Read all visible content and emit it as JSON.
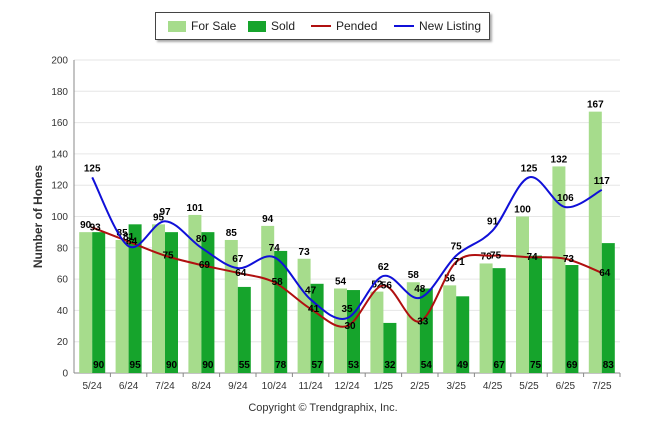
{
  "legend": {
    "for_sale": "For Sale",
    "sold": "Sold",
    "pended": "Pended",
    "new_listing": "New Listing"
  },
  "copyright": "Copyright © Trendgraphix, Inc.",
  "colors": {
    "for_sale": "#a6dc8c",
    "sold": "#16a42c",
    "pended": "#b01010",
    "new_listing": "#1010d8",
    "grid": "#e6e6e6",
    "axis": "#888888"
  },
  "chart_data": {
    "type": "bar",
    "ylabel": "Number of Homes",
    "xlabel": "",
    "ylim": [
      0,
      200
    ],
    "yticks": [
      0,
      20,
      40,
      60,
      80,
      100,
      120,
      140,
      160,
      180,
      200
    ],
    "grid": true,
    "legend_position": "top-center",
    "categories": [
      "5/24",
      "6/24",
      "7/24",
      "8/24",
      "9/24",
      "10/24",
      "11/24",
      "12/24",
      "1/25",
      "2/25",
      "3/25",
      "4/25",
      "5/25",
      "6/25",
      "7/25"
    ],
    "series": [
      {
        "name": "For Sale",
        "kind": "bar",
        "values": [
          90,
          85,
          95,
          101,
          85,
          94,
          73,
          54,
          52,
          58,
          56,
          70,
          100,
          132,
          167
        ]
      },
      {
        "name": "Sold",
        "kind": "bar",
        "values": [
          90,
          95,
          90,
          90,
          55,
          78,
          57,
          53,
          32,
          54,
          49,
          67,
          75,
          69,
          83
        ]
      },
      {
        "name": "Pended",
        "kind": "line",
        "values": [
          93,
          84,
          75,
          69,
          64,
          58,
          41,
          30,
          56,
          33,
          71,
          75,
          74,
          73,
          64
        ]
      },
      {
        "name": "New Listing",
        "kind": "line",
        "values": [
          125,
          81,
          97,
          80,
          67,
          74,
          47,
          35,
          62,
          48,
          75,
          91,
          125,
          106,
          117
        ]
      }
    ]
  }
}
